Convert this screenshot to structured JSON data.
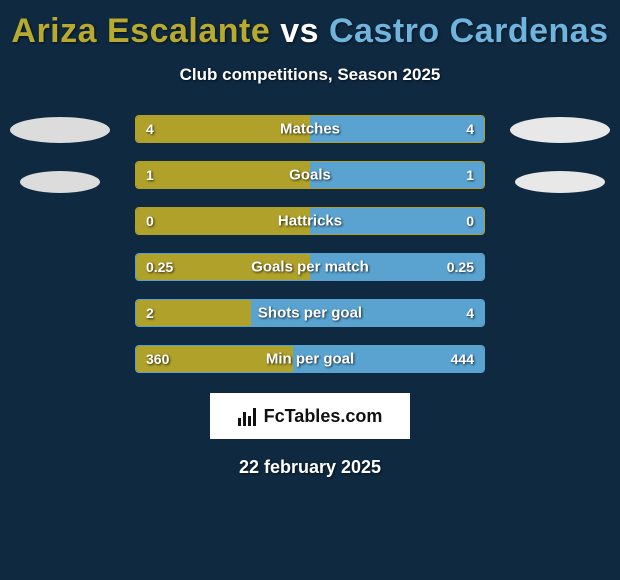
{
  "header": {
    "player1": "Ariza Escalante",
    "vs": "vs",
    "player2": "Castro Cardenas",
    "subtitle": "Club competitions, Season 2025"
  },
  "colors": {
    "background": "#0f2940",
    "player1": "#b0a12b",
    "player2": "#5aa3d0",
    "player1_title": "#b8aa2e",
    "player2_title": "#6fb4de",
    "shadow_left": "#dcdcdc",
    "shadow_right": "#e8e8e8",
    "logo_bg": "#ffffff",
    "text": "#ffffff"
  },
  "stats": [
    {
      "label": "Matches",
      "left_val": "4",
      "right_val": "4",
      "left_pct": 50,
      "right_pct": 50,
      "border": "#b0a12b"
    },
    {
      "label": "Goals",
      "left_val": "1",
      "right_val": "1",
      "left_pct": 50,
      "right_pct": 50,
      "border": "#b0a12b"
    },
    {
      "label": "Hattricks",
      "left_val": "0",
      "right_val": "0",
      "left_pct": 50,
      "right_pct": 50,
      "border": "#b0a12b"
    },
    {
      "label": "Goals per match",
      "left_val": "0.25",
      "right_val": "0.25",
      "left_pct": 50,
      "right_pct": 50,
      "border": "#5aa3d0"
    },
    {
      "label": "Shots per goal",
      "left_val": "2",
      "right_val": "4",
      "left_pct": 33,
      "right_pct": 67,
      "border": "#5aa3d0"
    },
    {
      "label": "Min per goal",
      "left_val": "360",
      "right_val": "444",
      "left_pct": 45,
      "right_pct": 55,
      "border": "#5aa3d0"
    }
  ],
  "logo": {
    "text": "FcTables.com"
  },
  "date": "22 february 2025"
}
